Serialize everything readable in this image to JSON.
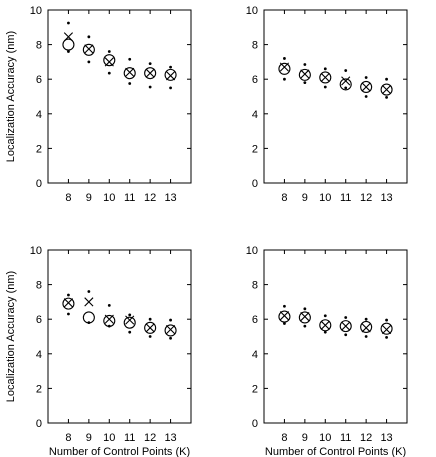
{
  "chart_data": [
    {
      "type": "scatter",
      "ylabel": "Localization Accuracy (nm)",
      "xlabel": "",
      "categories": [
        "8",
        "9",
        "10",
        "11",
        "12",
        "13"
      ],
      "x": [
        8,
        9,
        10,
        11,
        12,
        13
      ],
      "ylim": [
        0,
        10
      ],
      "yticks": [
        0,
        2,
        4,
        6,
        8,
        10
      ],
      "grid": false,
      "series": [
        {
          "marker": "circle",
          "values": [
            8.0,
            7.7,
            7.1,
            6.35,
            6.35,
            6.25
          ]
        },
        {
          "marker": "cross",
          "values": [
            8.45,
            7.75,
            7.0,
            6.4,
            6.35,
            6.2
          ]
        },
        {
          "marker": "dot-upper",
          "values": [
            9.25,
            8.45,
            7.6,
            7.15,
            6.9,
            6.7
          ]
        },
        {
          "marker": "dot-lower",
          "values": [
            7.6,
            7.0,
            6.35,
            5.75,
            5.55,
            5.5
          ]
        }
      ]
    },
    {
      "type": "scatter",
      "ylabel": "",
      "xlabel": "",
      "categories": [
        "8",
        "9",
        "10",
        "11",
        "12",
        "13"
      ],
      "x": [
        8,
        9,
        10,
        11,
        12,
        13
      ],
      "ylim": [
        0,
        10
      ],
      "yticks": [
        0,
        2,
        4,
        6,
        8,
        10
      ],
      "grid": false,
      "series": [
        {
          "marker": "circle",
          "values": [
            6.6,
            6.25,
            6.1,
            5.7,
            5.55,
            5.4
          ]
        },
        {
          "marker": "cross",
          "values": [
            6.7,
            6.3,
            6.1,
            5.9,
            5.55,
            5.4
          ]
        },
        {
          "marker": "dot-upper",
          "values": [
            7.2,
            6.85,
            6.6,
            6.5,
            6.1,
            6.0
          ]
        },
        {
          "marker": "dot-lower",
          "values": [
            6.0,
            5.8,
            5.55,
            5.5,
            5.0,
            4.95
          ]
        }
      ]
    },
    {
      "type": "scatter",
      "ylabel": "Localization Accuracy (nm)",
      "xlabel": "Number of Control Points (K)",
      "categories": [
        "8",
        "9",
        "10",
        "11",
        "12",
        "13"
      ],
      "x": [
        8,
        9,
        10,
        11,
        12,
        13
      ],
      "ylim": [
        0,
        10
      ],
      "yticks": [
        0,
        2,
        4,
        6,
        8,
        10
      ],
      "grid": false,
      "series": [
        {
          "marker": "circle",
          "values": [
            6.9,
            6.1,
            5.9,
            5.8,
            5.5,
            5.35
          ]
        },
        {
          "marker": "cross",
          "values": [
            6.95,
            7.0,
            6.0,
            5.95,
            5.5,
            5.4
          ]
        },
        {
          "marker": "dot-upper",
          "values": [
            7.4,
            7.6,
            6.8,
            6.25,
            6.0,
            5.95
          ]
        },
        {
          "marker": "dot-lower",
          "values": [
            6.3,
            5.8,
            5.6,
            5.25,
            5.0,
            4.9
          ]
        }
      ]
    },
    {
      "type": "scatter",
      "ylabel": "",
      "xlabel": "Number of Control Points (K)",
      "categories": [
        "8",
        "9",
        "10",
        "11",
        "12",
        "13"
      ],
      "x": [
        8,
        9,
        10,
        11,
        12,
        13
      ],
      "ylim": [
        0,
        10
      ],
      "yticks": [
        0,
        2,
        4,
        6,
        8,
        10
      ],
      "grid": false,
      "series": [
        {
          "marker": "circle",
          "values": [
            6.15,
            6.1,
            5.65,
            5.6,
            5.55,
            5.45
          ]
        },
        {
          "marker": "cross",
          "values": [
            6.2,
            6.15,
            5.65,
            5.6,
            5.5,
            5.4
          ]
        },
        {
          "marker": "dot-upper",
          "values": [
            6.75,
            6.6,
            6.2,
            6.1,
            6.0,
            5.95
          ]
        },
        {
          "marker": "dot-lower",
          "values": [
            5.75,
            5.6,
            5.25,
            5.1,
            5.0,
            4.95
          ]
        }
      ]
    }
  ]
}
